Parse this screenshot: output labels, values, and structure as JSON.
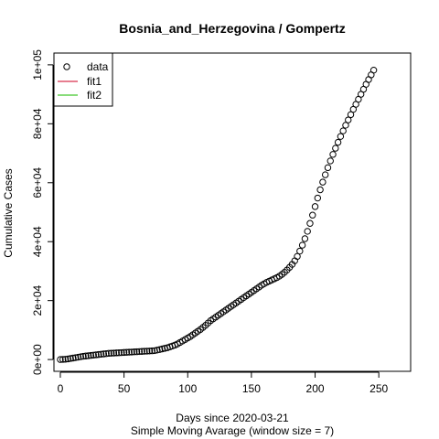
{
  "chart_data": {
    "type": "scatter",
    "title": "Bosnia_and_Herzegovina / Gompertz",
    "xlabel": "Days since 2020-03-21",
    "subtitle": "Simple Moving Avarage (window size = 7)",
    "ylabel": "Cumulative Cases",
    "xlim": [
      -5,
      275
    ],
    "ylim": [
      -4000,
      104000
    ],
    "x_ticks": [
      0,
      50,
      100,
      150,
      200,
      250
    ],
    "x_tick_labels": [
      "0",
      "50",
      "100",
      "150",
      "200",
      "250"
    ],
    "y_ticks": [
      0,
      20000,
      40000,
      60000,
      80000,
      100000
    ],
    "y_tick_labels": [
      "0e+00",
      "2e+04",
      "4e+04",
      "6e+04",
      "8e+04",
      "1e+05"
    ],
    "legend_position": "top-left",
    "legend": [
      {
        "label": "data",
        "kind": "circle",
        "color": "#000000"
      },
      {
        "label": "fit1",
        "kind": "line",
        "color": "#DF536B"
      },
      {
        "label": "fit2",
        "kind": "line",
        "color": "#61D04F"
      }
    ],
    "series": [
      {
        "name": "data",
        "x_start": 0,
        "x_step": 2,
        "values": [
          0,
          50,
          100,
          200,
          350,
          500,
          650,
          800,
          950,
          1100,
          1200,
          1300,
          1400,
          1500,
          1600,
          1700,
          1800,
          1900,
          2000,
          2100,
          2150,
          2200,
          2250,
          2300,
          2350,
          2400,
          2450,
          2500,
          2550,
          2600,
          2650,
          2700,
          2750,
          2800,
          2850,
          2900,
          2950,
          3000,
          3200,
          3400,
          3600,
          3800,
          4000,
          4300,
          4600,
          4900,
          5300,
          5800,
          6300,
          6800,
          7300,
          7800,
          8400,
          9000,
          9600,
          10200,
          10900,
          11600,
          12400,
          13200,
          13800,
          14400,
          15000,
          15600,
          16200,
          16800,
          17400,
          18000,
          18600,
          19200,
          19800,
          20400,
          21000,
          21600,
          22200,
          22800,
          23400,
          24000,
          24600,
          25200,
          25700,
          26200,
          26600,
          27000,
          27400,
          27800,
          28300,
          28900,
          29600,
          30400,
          31300,
          32300,
          33500,
          35000,
          36800,
          38800,
          41000,
          43500,
          46200,
          49000,
          51900,
          54800,
          57600,
          60200,
          62700,
          65100,
          67400,
          69600,
          71700,
          73700,
          75700,
          77600,
          79500,
          81300,
          83100,
          84900,
          86600,
          88300,
          90000,
          91700,
          93400,
          95000,
          96600,
          98200
        ]
      }
    ]
  }
}
